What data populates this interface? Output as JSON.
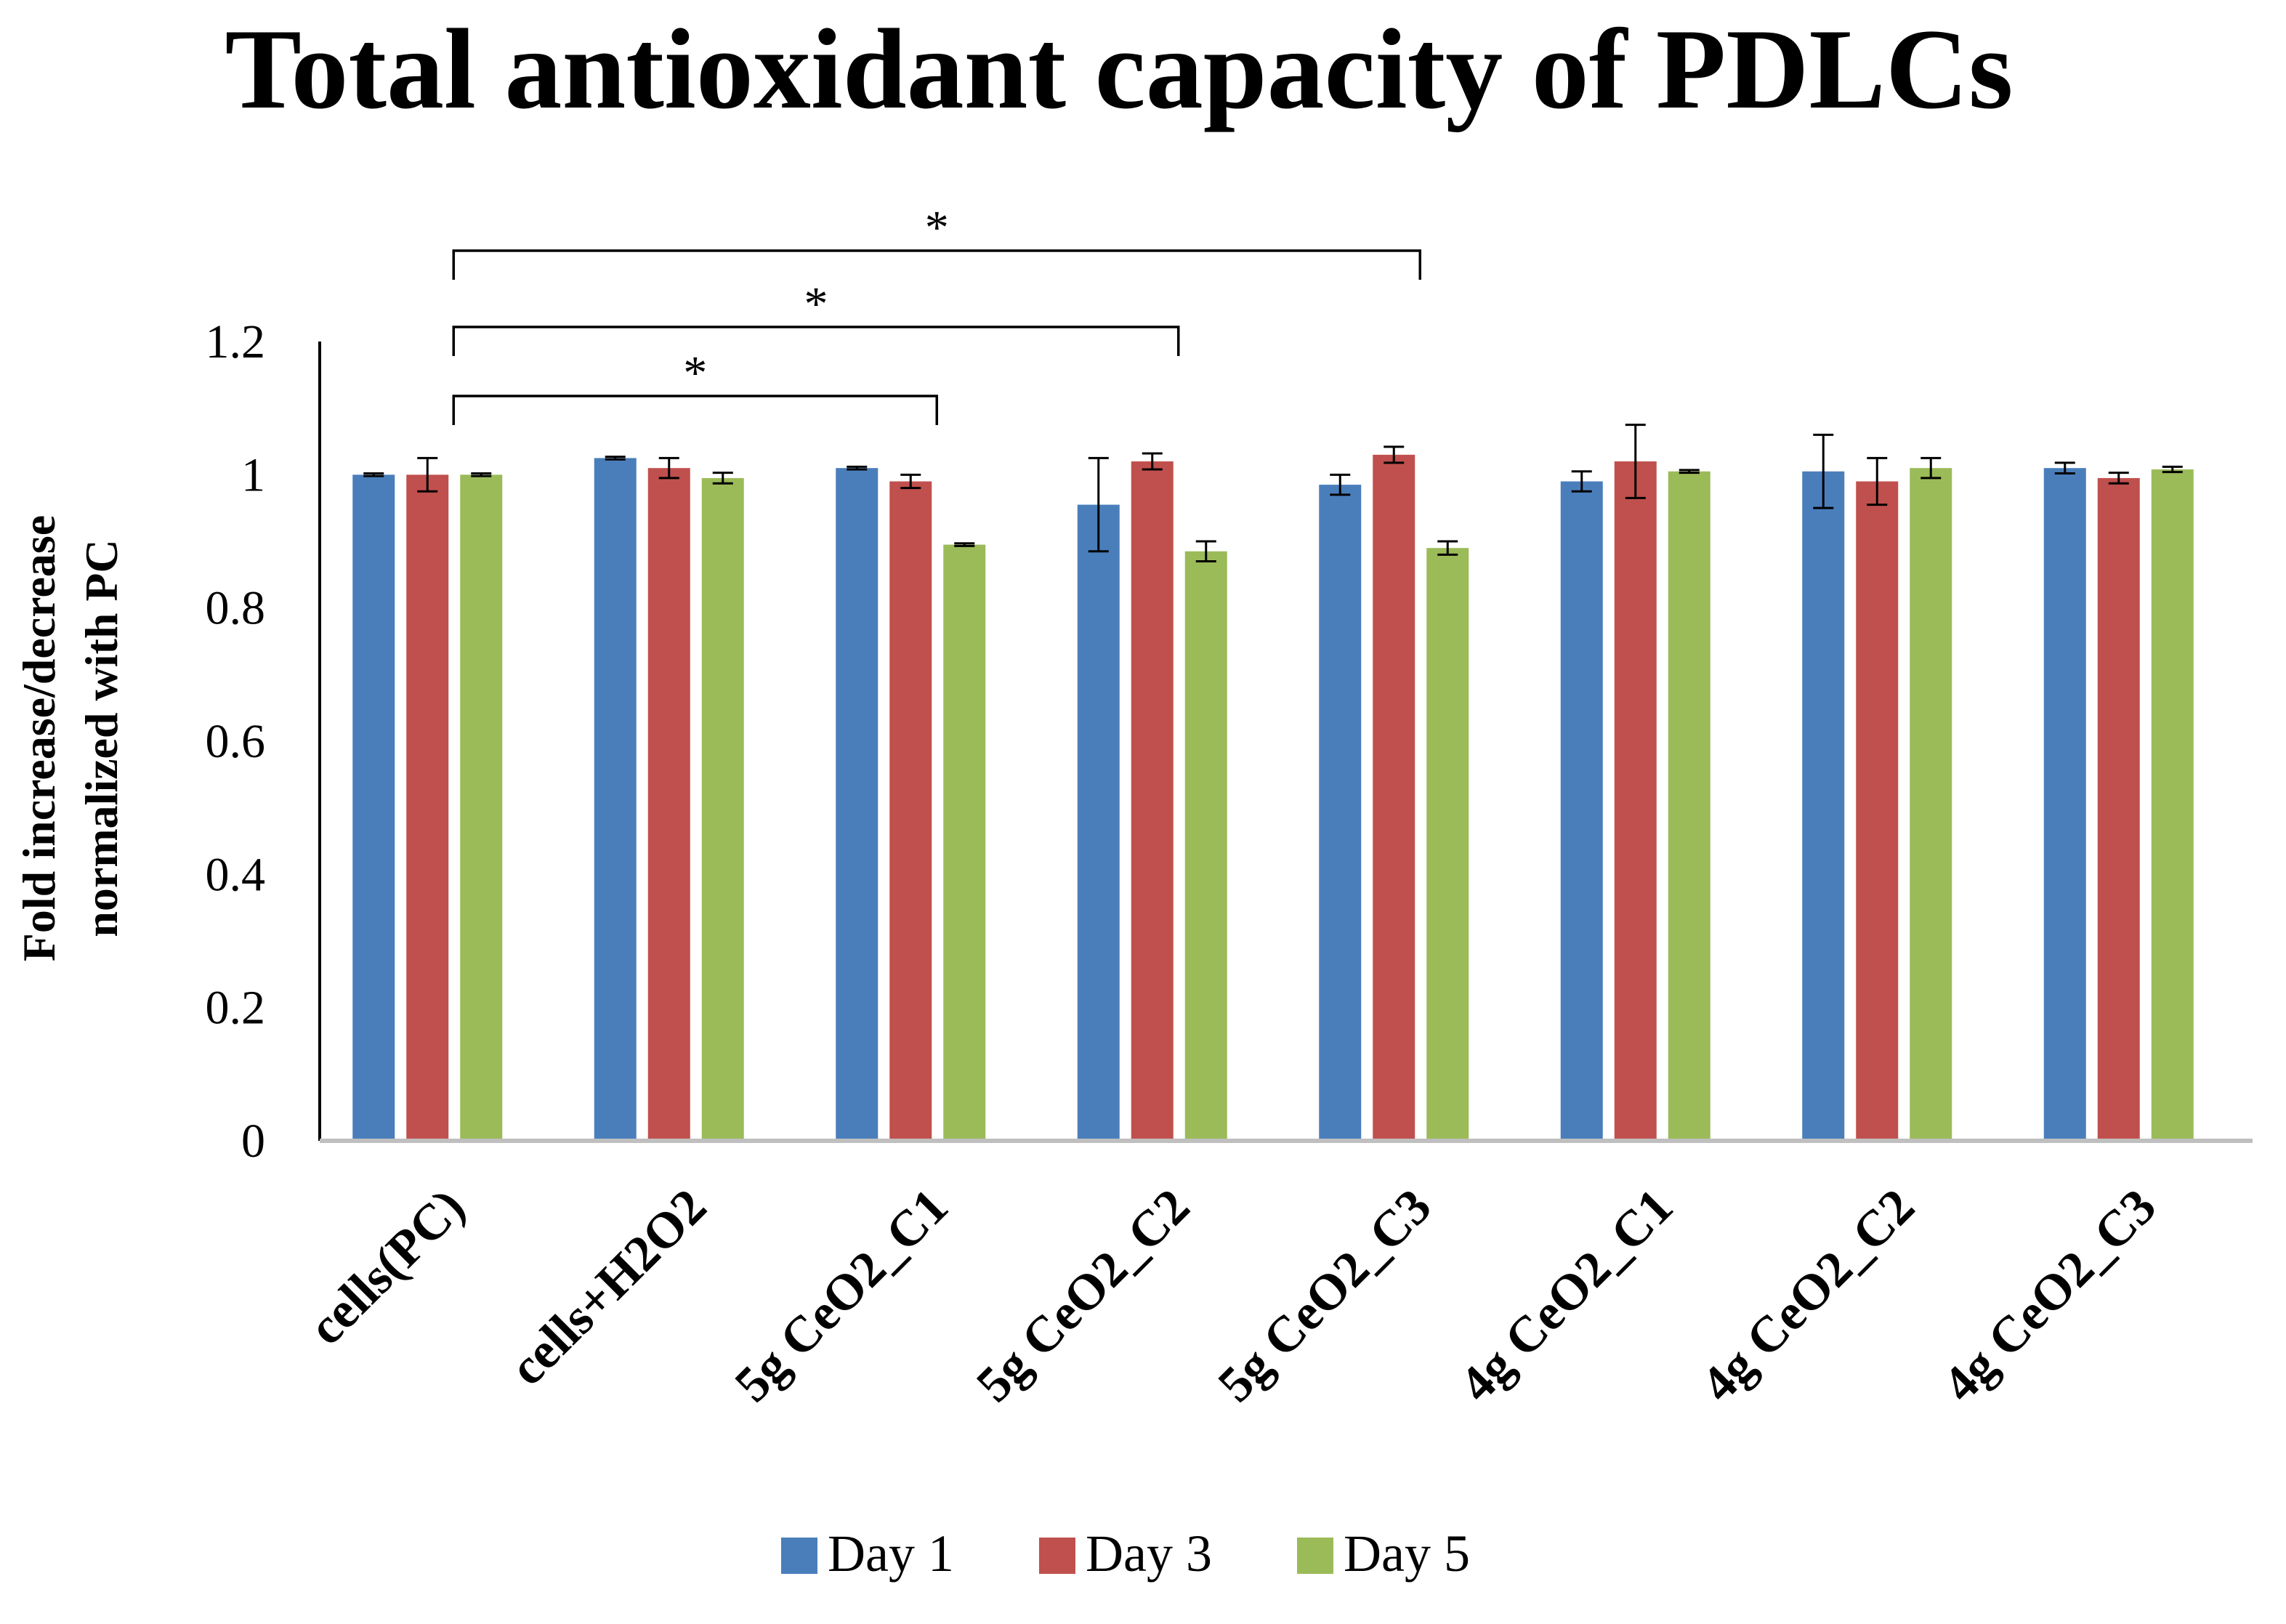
{
  "chart_data": {
    "type": "bar",
    "title": "Total antioxidant capacity of PDLCs",
    "ylabel_line1": "Fold increase/decrease",
    "ylabel_line2": "normalized with PC",
    "xlabel": "",
    "ylim": [
      0,
      1.2
    ],
    "yticks": [
      0,
      0.2,
      0.4,
      0.6,
      0.8,
      1,
      1.2
    ],
    "ytick_labels": [
      "0",
      "0.2",
      "0.4",
      "0.6",
      "0.8",
      "1",
      "1.2"
    ],
    "categories": [
      "cells(PC)",
      "cells+H2O2",
      "5g CeO2_C1",
      "5g CeO2_C2",
      "5g CeO2_C3",
      "4g CeO2_C1",
      "4g CeO2_C2",
      "4g CeO2_C3"
    ],
    "series": [
      {
        "name": "Day 1",
        "color": "#4a7ebb",
        "values": [
          1.0,
          1.025,
          1.01,
          0.955,
          0.985,
          0.99,
          1.005,
          1.01
        ],
        "errors": [
          0.002,
          0.002,
          0.002,
          0.07,
          0.015,
          0.015,
          0.055,
          0.008
        ]
      },
      {
        "name": "Day 3",
        "color": "#c0504d",
        "values": [
          1.0,
          1.01,
          0.99,
          1.02,
          1.03,
          1.02,
          0.99,
          0.995
        ],
        "errors": [
          0.025,
          0.015,
          0.01,
          0.012,
          0.012,
          0.055,
          0.035,
          0.008
        ]
      },
      {
        "name": "Day 5",
        "color": "#9bbb59",
        "values": [
          1.0,
          0.995,
          0.895,
          0.885,
          0.89,
          1.005,
          1.01,
          1.008
        ],
        "errors": [
          0.002,
          0.008,
          0.002,
          0.015,
          0.01,
          0.002,
          0.015,
          0.004
        ]
      }
    ],
    "significance": [
      {
        "from": "cells(PC)",
        "to": "5g CeO2_C1",
        "label": "*"
      },
      {
        "from": "cells(PC)",
        "to": "5g CeO2_C2",
        "label": "*"
      },
      {
        "from": "cells(PC)",
        "to": "5g CeO2_C3",
        "label": "*"
      }
    ],
    "legend": {
      "position": "bottom",
      "entries": [
        "Day 1",
        "Day 3",
        "Day 5"
      ]
    }
  }
}
